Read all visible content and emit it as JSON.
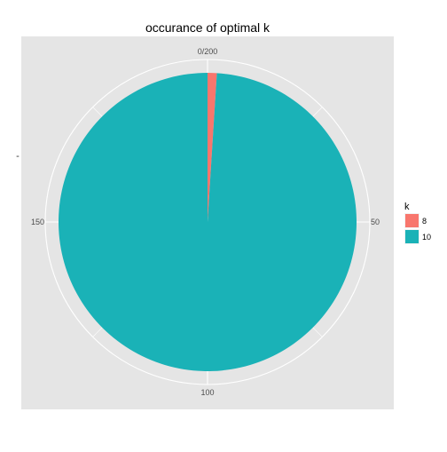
{
  "chart_data": {
    "type": "pie",
    "title": "occurance of optimal k",
    "xlabel": "",
    "ylabel": "",
    "y_axis_tick": "-",
    "total": 200,
    "theta_range": [
      0,
      200
    ],
    "angular_ticks": [
      {
        "value": 0,
        "label": "0/200"
      },
      {
        "value": 50,
        "label": "50"
      },
      {
        "value": 100,
        "label": "100"
      },
      {
        "value": 150,
        "label": "150"
      }
    ],
    "slices": [
      {
        "label": "8",
        "value": 2,
        "color": "#F8766D"
      },
      {
        "label": "10",
        "value": 198,
        "color": "#1AB2B7"
      }
    ],
    "legend": {
      "title": "k",
      "position": "right",
      "items": [
        {
          "label": "8",
          "color": "#F8766D"
        },
        {
          "label": "10",
          "color": "#1AB2B7"
        }
      ]
    },
    "grid": true,
    "panel_background": "#E5E5E5",
    "grid_color": "#FFFFFF"
  }
}
